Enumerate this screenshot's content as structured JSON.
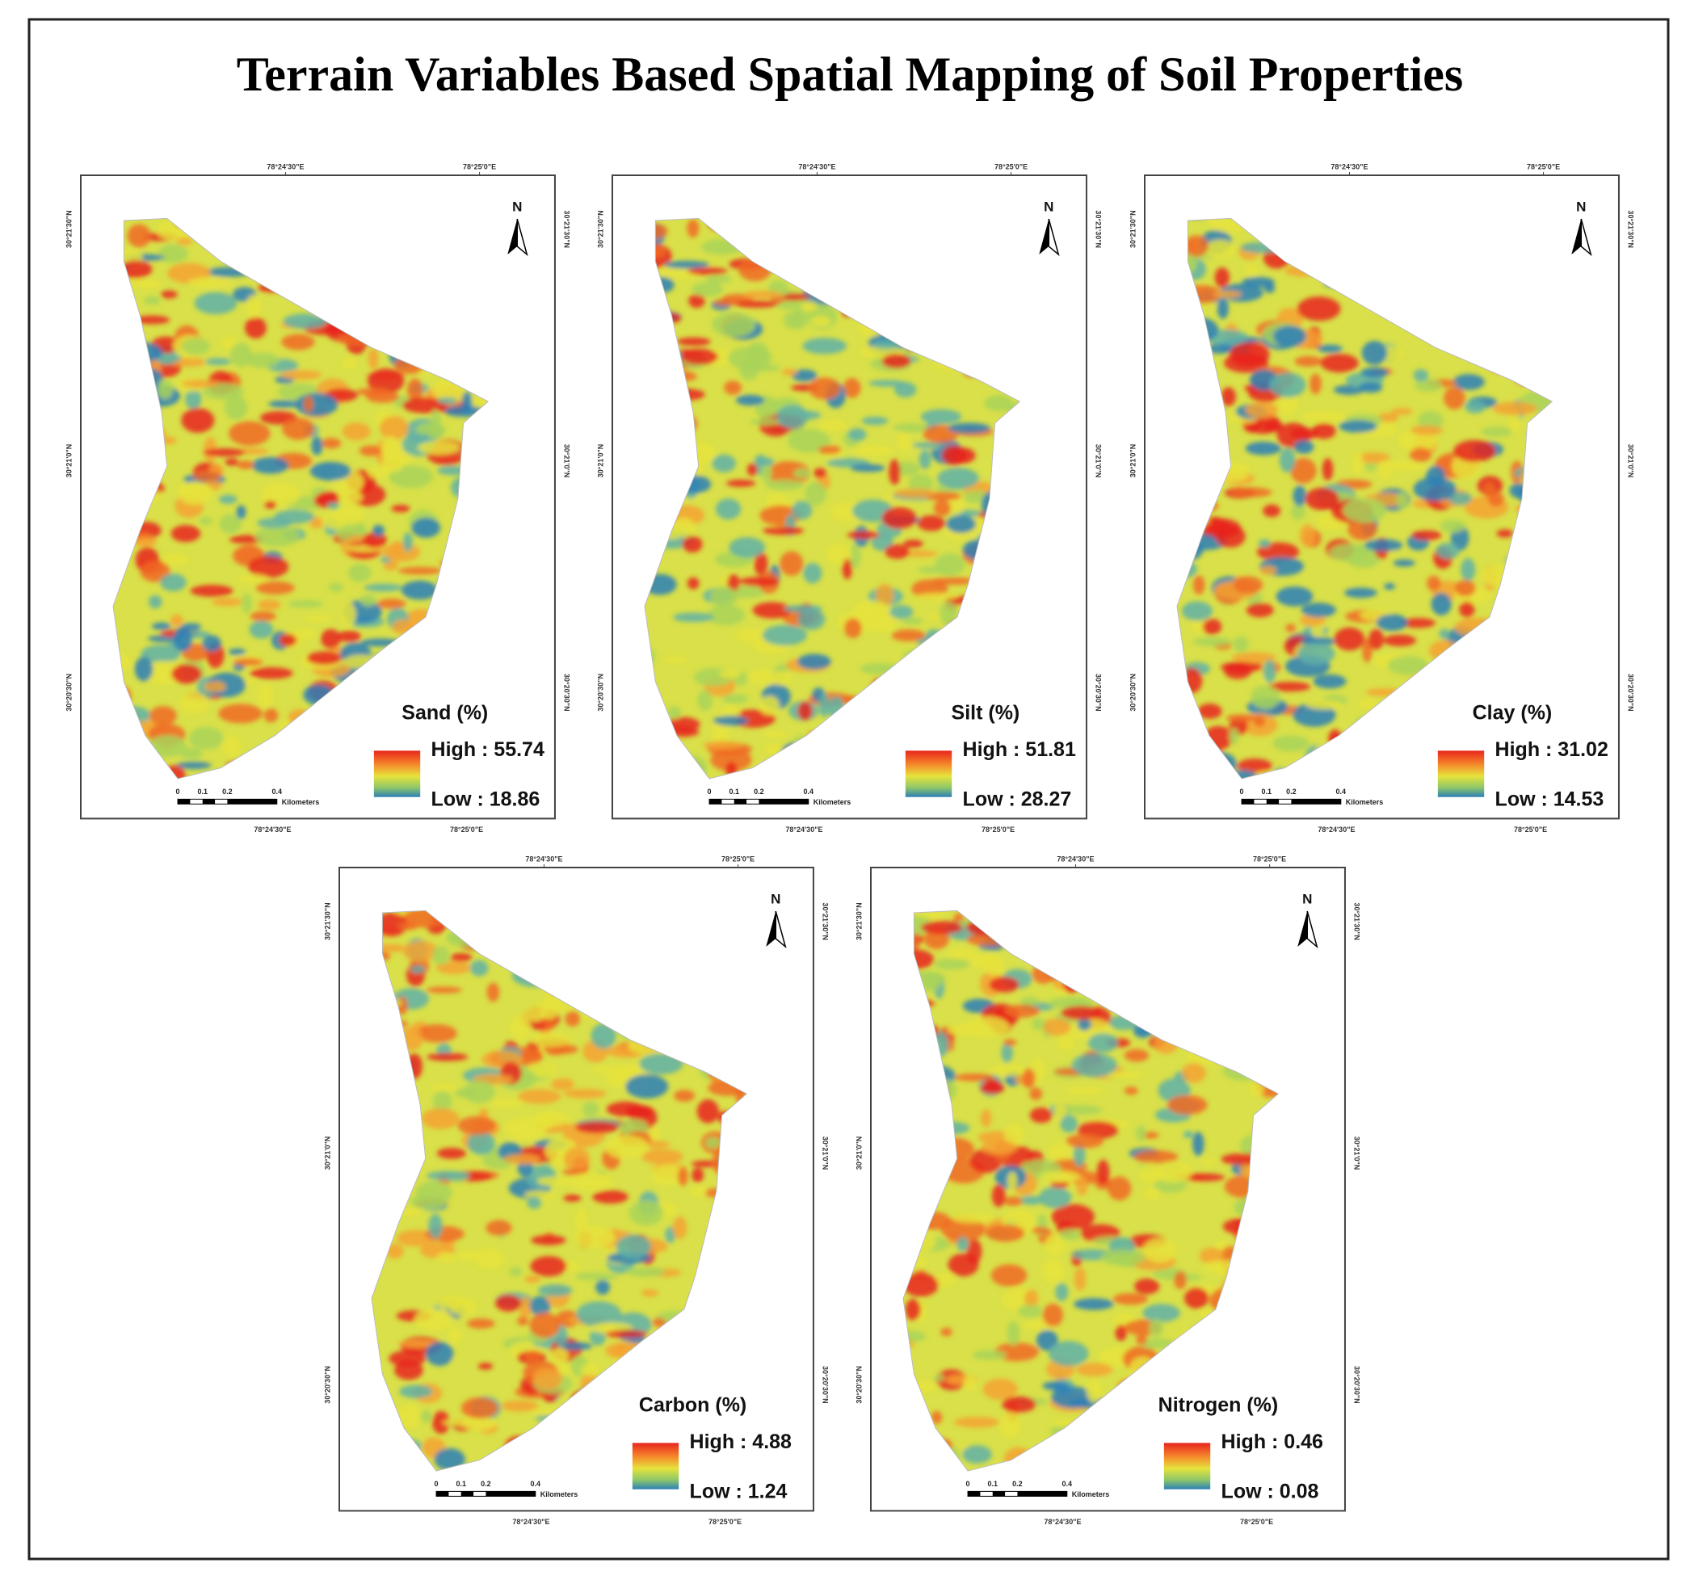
{
  "title": "Terrain Variables Based Spatial Mapping of Soil Properties",
  "panels": [
    {
      "name": "Sand (%)",
      "high": "High : 55.74",
      "low": "Low : 18.86"
    },
    {
      "name": "Silt (%)",
      "high": "High : 51.81",
      "low": "Low : 28.27"
    },
    {
      "name": "Clay (%)",
      "high": "High : 31.02",
      "low": "Low : 14.53"
    },
    {
      "name": "Carbon (%)",
      "high": "High : 4.88",
      "low": "Low : 1.24"
    },
    {
      "name": "Nitrogen (%)",
      "high": "High : 0.46",
      "low": "Low : 0.08"
    }
  ],
  "map_frame": {
    "north": "N",
    "x_labels": [
      "78°24'30\"E",
      "78°25'0\"E"
    ],
    "y_labels": [
      "30°21'30\"N",
      "30°21'0\"N",
      "30°20'30\"N"
    ],
    "scale_labels": [
      "0",
      "0.1",
      "0.2",
      "0.4"
    ],
    "scale_unit": "Kilometers"
  }
}
